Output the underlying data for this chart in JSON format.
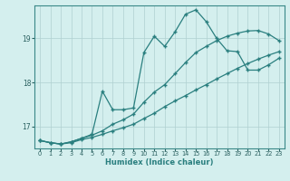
{
  "xlabel": "Humidex (Indice chaleur)",
  "bg_color": "#d4efee",
  "grid_color": "#b0d0d0",
  "line_color": "#2a7f7f",
  "xlim": [
    -0.5,
    23.5
  ],
  "ylim": [
    16.5,
    19.75
  ],
  "yticks": [
    17,
    18,
    19
  ],
  "xticks": [
    0,
    1,
    2,
    3,
    4,
    5,
    6,
    7,
    8,
    9,
    10,
    11,
    12,
    13,
    14,
    15,
    16,
    17,
    18,
    19,
    20,
    21,
    22,
    23
  ],
  "line1_x": [
    0,
    1,
    2,
    3,
    4,
    5,
    6,
    7,
    8,
    9,
    10,
    11,
    12,
    13,
    14,
    15,
    16,
    17,
    18,
    19,
    20,
    21,
    22,
    23
  ],
  "line1_y": [
    16.68,
    16.63,
    16.6,
    16.63,
    16.7,
    16.75,
    16.82,
    16.9,
    16.97,
    17.05,
    17.18,
    17.3,
    17.45,
    17.58,
    17.7,
    17.83,
    17.95,
    18.08,
    18.2,
    18.32,
    18.43,
    18.53,
    18.62,
    18.7
  ],
  "line2_x": [
    0,
    1,
    2,
    3,
    4,
    5,
    6,
    7,
    8,
    9,
    10,
    11,
    12,
    13,
    14,
    15,
    16,
    17,
    18,
    19,
    20,
    21,
    22,
    23
  ],
  "line2_y": [
    16.68,
    16.63,
    16.6,
    16.65,
    16.73,
    16.8,
    16.9,
    17.05,
    17.15,
    17.28,
    17.55,
    17.78,
    17.95,
    18.2,
    18.45,
    18.68,
    18.82,
    18.95,
    19.05,
    19.12,
    19.17,
    19.18,
    19.1,
    18.95
  ],
  "line3_x": [
    0,
    1,
    2,
    3,
    4,
    5,
    6,
    7,
    8,
    9,
    10,
    11,
    12,
    13,
    14,
    15,
    16,
    17,
    18,
    19,
    20,
    21,
    22,
    23
  ],
  "line3_y": [
    16.68,
    16.63,
    16.6,
    16.65,
    16.73,
    16.82,
    17.8,
    17.38,
    17.38,
    17.42,
    18.68,
    19.05,
    18.82,
    19.15,
    19.55,
    19.65,
    19.38,
    19.0,
    18.72,
    18.7,
    18.28,
    18.28,
    18.4,
    18.55
  ]
}
